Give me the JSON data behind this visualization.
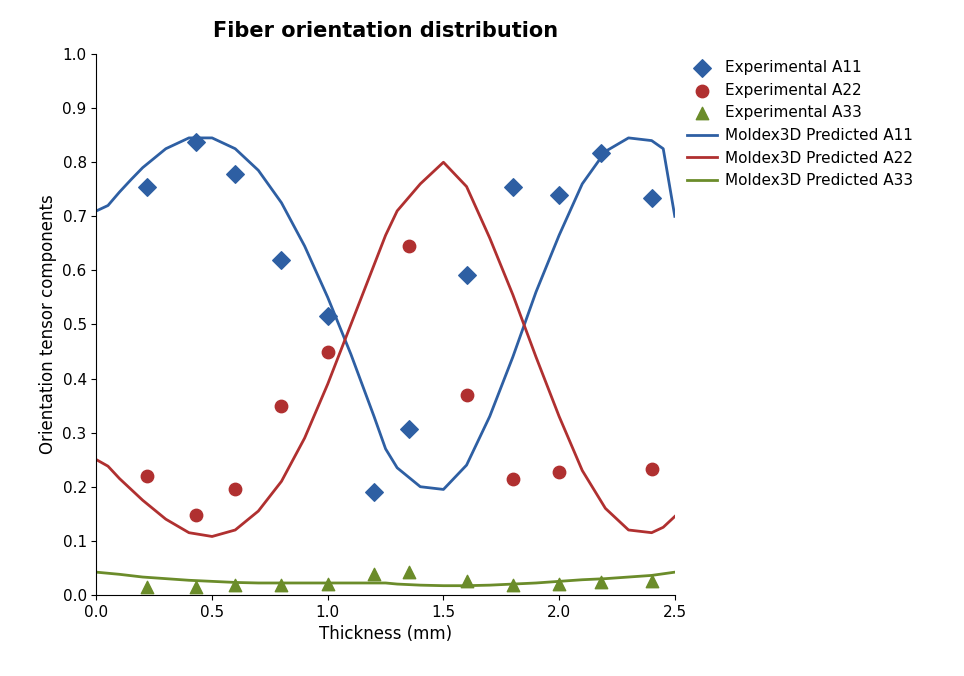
{
  "title": "Fiber orientation distribution",
  "xlabel": "Thickness (mm)",
  "ylabel": "Orientation tensor components",
  "xlim": [
    0.0,
    2.5
  ],
  "ylim": [
    0.0,
    1.0
  ],
  "xticks": [
    0.0,
    0.5,
    1.0,
    1.5,
    2.0,
    2.5
  ],
  "yticks": [
    0.0,
    0.1,
    0.2,
    0.3,
    0.4,
    0.5,
    0.6,
    0.7,
    0.8,
    0.9,
    1.0
  ],
  "exp_A11_x": [
    0.22,
    0.43,
    0.6,
    0.8,
    1.0,
    1.2,
    1.35,
    1.6,
    1.8,
    2.0,
    2.18,
    2.4
  ],
  "exp_A11_y": [
    0.755,
    0.838,
    0.778,
    0.62,
    0.515,
    0.19,
    0.307,
    0.592,
    0.755,
    0.74,
    0.818,
    0.733
  ],
  "exp_A22_x": [
    0.22,
    0.43,
    0.6,
    0.8,
    1.0,
    1.35,
    1.6,
    1.8,
    2.0,
    2.4
  ],
  "exp_A22_y": [
    0.22,
    0.148,
    0.195,
    0.35,
    0.45,
    0.645,
    0.37,
    0.215,
    0.228,
    0.233
  ],
  "exp_A33_x": [
    0.22,
    0.43,
    0.6,
    0.8,
    1.0,
    1.2,
    1.35,
    1.6,
    1.8,
    2.0,
    2.18,
    2.4
  ],
  "exp_A33_y": [
    0.015,
    0.015,
    0.018,
    0.018,
    0.02,
    0.038,
    0.043,
    0.025,
    0.018,
    0.02,
    0.023,
    0.025
  ],
  "pred_A11_x": [
    0.0,
    0.05,
    0.1,
    0.15,
    0.2,
    0.3,
    0.4,
    0.5,
    0.6,
    0.7,
    0.8,
    0.9,
    1.0,
    1.1,
    1.2,
    1.25,
    1.3,
    1.4,
    1.5,
    1.6,
    1.7,
    1.8,
    1.9,
    2.0,
    2.1,
    2.2,
    2.3,
    2.4,
    2.45,
    2.5
  ],
  "pred_A11_y": [
    0.71,
    0.72,
    0.745,
    0.768,
    0.79,
    0.825,
    0.845,
    0.845,
    0.825,
    0.785,
    0.725,
    0.645,
    0.55,
    0.445,
    0.33,
    0.27,
    0.235,
    0.2,
    0.195,
    0.24,
    0.33,
    0.44,
    0.56,
    0.665,
    0.76,
    0.82,
    0.845,
    0.84,
    0.825,
    0.7
  ],
  "pred_A22_x": [
    0.0,
    0.05,
    0.1,
    0.2,
    0.3,
    0.4,
    0.5,
    0.6,
    0.7,
    0.8,
    0.9,
    1.0,
    1.1,
    1.2,
    1.25,
    1.3,
    1.4,
    1.5,
    1.6,
    1.7,
    1.8,
    1.9,
    2.0,
    2.1,
    2.2,
    2.3,
    2.4,
    2.45,
    2.5
  ],
  "pred_A22_y": [
    0.25,
    0.238,
    0.215,
    0.175,
    0.14,
    0.115,
    0.108,
    0.12,
    0.155,
    0.21,
    0.29,
    0.39,
    0.5,
    0.61,
    0.665,
    0.71,
    0.76,
    0.8,
    0.755,
    0.66,
    0.555,
    0.44,
    0.33,
    0.23,
    0.16,
    0.12,
    0.115,
    0.125,
    0.145
  ],
  "pred_A33_x": [
    0.0,
    0.1,
    0.2,
    0.3,
    0.4,
    0.5,
    0.6,
    0.7,
    0.8,
    0.9,
    1.0,
    1.1,
    1.2,
    1.25,
    1.3,
    1.4,
    1.5,
    1.6,
    1.7,
    1.8,
    1.9,
    2.0,
    2.1,
    2.2,
    2.3,
    2.4,
    2.5
  ],
  "pred_A33_y": [
    0.042,
    0.038,
    0.033,
    0.03,
    0.027,
    0.025,
    0.023,
    0.022,
    0.022,
    0.022,
    0.022,
    0.022,
    0.022,
    0.022,
    0.02,
    0.018,
    0.017,
    0.017,
    0.018,
    0.02,
    0.022,
    0.025,
    0.028,
    0.03,
    0.033,
    0.036,
    0.042
  ],
  "color_A11": "#2E5FA3",
  "color_A22": "#B03030",
  "color_A33": "#6B8C2A",
  "title_fontsize": 15,
  "label_fontsize": 12,
  "tick_fontsize": 11,
  "legend_fontsize": 11
}
